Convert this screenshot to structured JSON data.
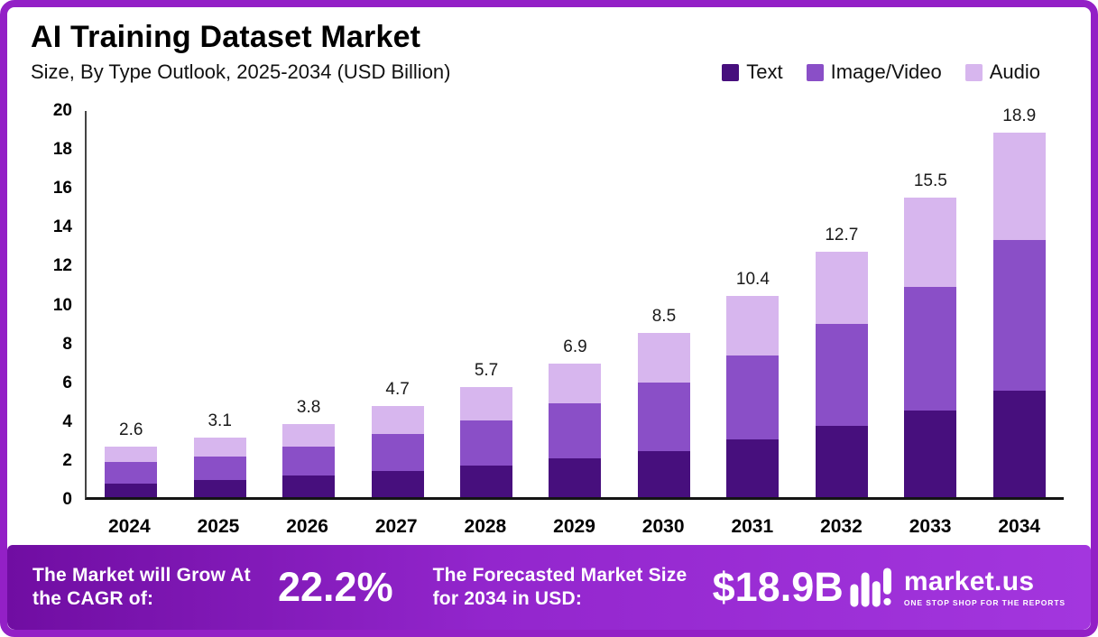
{
  "header": {
    "title": "AI Training Dataset Market",
    "subtitle": "Size, By Type Outlook, 2025-2034 (USD Billion)"
  },
  "chart_data": {
    "type": "bar",
    "stacked": true,
    "title": "AI Training Dataset Market",
    "subtitle": "Size, By Type Outlook, 2025-2034 (USD Billion)",
    "unit": "USD Billion",
    "categories": [
      "2024",
      "2025",
      "2026",
      "2027",
      "2028",
      "2029",
      "2030",
      "2031",
      "2032",
      "2033",
      "2034"
    ],
    "series": [
      {
        "name": "Text",
        "color": "#470f7d",
        "values": [
          0.7,
          0.9,
          1.1,
          1.35,
          1.65,
          2.0,
          2.4,
          3.0,
          3.7,
          4.5,
          5.5
        ]
      },
      {
        "name": "Image/Video",
        "color": "#8a4fc7",
        "values": [
          1.1,
          1.2,
          1.5,
          1.9,
          2.3,
          2.85,
          3.55,
          4.35,
          5.25,
          6.4,
          7.8
        ]
      },
      {
        "name": "Audio",
        "color": "#d7b6ee",
        "values": [
          0.8,
          1.0,
          1.2,
          1.45,
          1.75,
          2.05,
          2.55,
          3.05,
          3.75,
          4.6,
          5.6
        ]
      }
    ],
    "totals": [
      2.6,
      3.1,
      3.8,
      4.7,
      5.7,
      6.9,
      8.5,
      10.4,
      12.7,
      15.5,
      18.9
    ],
    "ylim": [
      0,
      20
    ],
    "yticks": [
      0,
      2,
      4,
      6,
      8,
      10,
      12,
      14,
      16,
      18,
      20
    ],
    "grid": false,
    "legend_position": "top-right"
  },
  "footer": {
    "cagr_label": "The Market will Grow At the CAGR of:",
    "cagr_value": "22.2%",
    "forecast_label": "The Forecasted Market Size for 2034 in USD:",
    "forecast_value": "$18.9B",
    "brand": "market.us",
    "tagline": "ONE STOP SHOP FOR THE REPORTS"
  },
  "colors": {
    "frame": "#9320c6",
    "banner_gradient_start": "#700da2",
    "banner_gradient_end": "#a336de"
  }
}
